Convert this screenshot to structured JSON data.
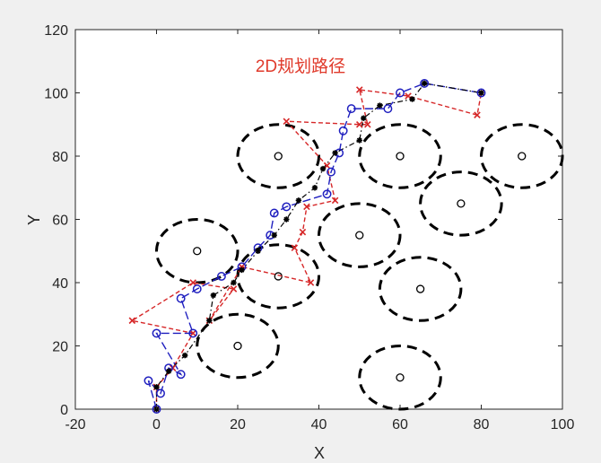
{
  "chart_data": {
    "type": "scatter",
    "title": "2D规划路径",
    "title_color": "#e03a2b",
    "xlabel": "X",
    "ylabel": "Y",
    "xlim": [
      -20,
      100
    ],
    "ylim": [
      0,
      120
    ],
    "xticks": [
      -20,
      0,
      20,
      40,
      60,
      80,
      100
    ],
    "yticks": [
      0,
      20,
      40,
      60,
      80,
      100,
      120
    ],
    "grid": false,
    "obstacles": {
      "centers": [
        [
          10,
          50
        ],
        [
          20,
          20
        ],
        [
          30,
          80
        ],
        [
          30,
          42
        ],
        [
          50,
          55
        ],
        [
          60,
          10
        ],
        [
          60,
          80
        ],
        [
          65,
          38
        ],
        [
          75,
          65
        ],
        [
          90,
          80
        ]
      ],
      "radius": 10,
      "color": "#000000"
    },
    "series": [
      {
        "style": "red dashed, x markers",
        "color": "#d62728",
        "points": [
          [
            0,
            0
          ],
          [
            0,
            7
          ],
          [
            4,
            13
          ],
          [
            9,
            24
          ],
          [
            -6,
            28
          ],
          [
            9,
            40
          ],
          [
            19,
            38
          ],
          [
            13,
            28
          ],
          [
            21,
            45
          ],
          [
            38,
            40
          ],
          [
            34,
            51
          ],
          [
            36,
            56
          ],
          [
            37,
            64
          ],
          [
            44,
            66
          ],
          [
            42,
            77
          ],
          [
            32,
            91
          ],
          [
            50,
            90
          ],
          [
            52,
            90
          ],
          [
            50,
            101
          ],
          [
            62,
            99
          ],
          [
            79,
            93
          ],
          [
            80,
            100
          ]
        ]
      },
      {
        "style": "blue dashed, circle markers",
        "color": "#1f1fbf",
        "points": [
          [
            0,
            0
          ],
          [
            -2,
            9
          ],
          [
            1,
            5
          ],
          [
            3,
            13
          ],
          [
            6,
            11
          ],
          [
            0,
            24
          ],
          [
            9,
            24
          ],
          [
            6,
            35
          ],
          [
            10,
            38
          ],
          [
            16,
            42
          ],
          [
            21,
            45
          ],
          [
            25,
            51
          ],
          [
            28,
            55
          ],
          [
            29,
            62
          ],
          [
            32,
            64
          ],
          [
            42,
            68
          ],
          [
            43,
            75
          ],
          [
            45,
            81
          ],
          [
            46,
            88
          ],
          [
            48,
            95
          ],
          [
            57,
            95
          ],
          [
            60,
            100
          ],
          [
            66,
            103
          ],
          [
            80,
            100
          ]
        ]
      },
      {
        "style": "black dash-dot, asterisk markers",
        "color": "#000000",
        "points": [
          [
            0,
            0
          ],
          [
            0,
            7
          ],
          [
            3,
            12
          ],
          [
            7,
            17
          ],
          [
            13,
            28
          ],
          [
            14,
            36
          ],
          [
            19,
            40
          ],
          [
            21,
            44
          ],
          [
            25,
            50
          ],
          [
            29,
            55
          ],
          [
            32,
            60
          ],
          [
            35,
            66
          ],
          [
            39,
            70
          ],
          [
            41,
            76
          ],
          [
            44,
            81
          ],
          [
            50,
            85
          ],
          [
            51,
            92
          ],
          [
            55,
            96
          ],
          [
            63,
            98
          ],
          [
            66,
            103
          ],
          [
            80,
            100
          ]
        ]
      }
    ]
  }
}
